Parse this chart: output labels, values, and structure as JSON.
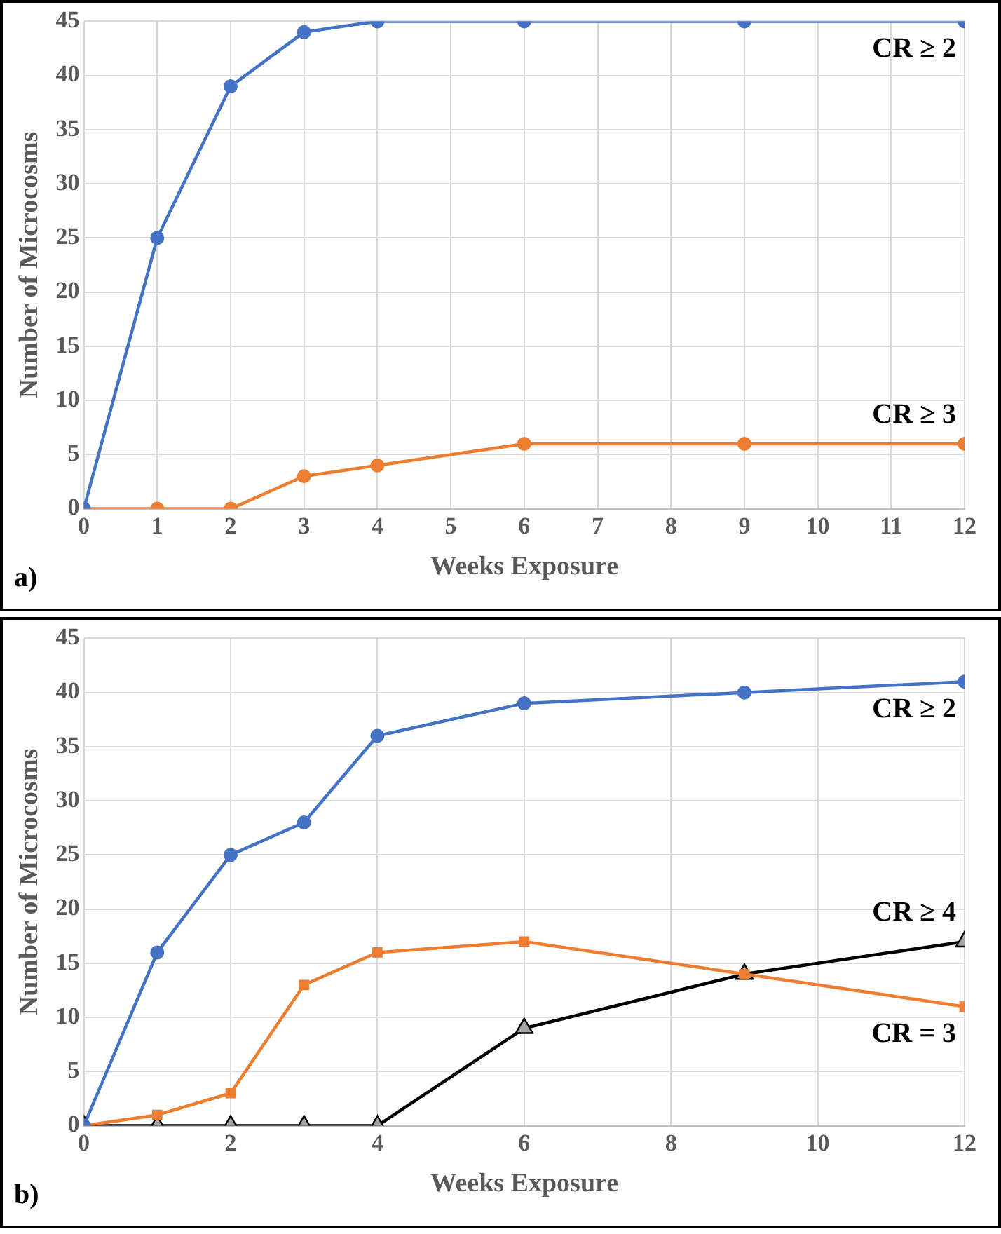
{
  "chart_data": [
    {
      "type": "line",
      "xlabel": "Weeks Exposure",
      "ylabel": "Number of Microcosms",
      "marker": "circle",
      "grid": true,
      "legend": false,
      "x": [
        0,
        1,
        2,
        3,
        4,
        6,
        9,
        12
      ],
      "xlim": [
        0,
        12
      ],
      "xticks": [
        0,
        1,
        2,
        3,
        4,
        5,
        6,
        7,
        8,
        9,
        10,
        11,
        12
      ],
      "ylim": [
        0,
        45
      ],
      "yticks": [
        0,
        5,
        10,
        15,
        20,
        25,
        30,
        35,
        40,
        45
      ],
      "series": [
        {
          "name": "CR ≥ 2",
          "color": "#4472c4",
          "values": [
            0,
            25,
            39,
            44,
            45,
            45,
            45,
            45
          ]
        },
        {
          "name": "CR ≥ 3",
          "color": "#ed7d31",
          "values": [
            0,
            0,
            0,
            3,
            4,
            6,
            6,
            6
          ]
        }
      ],
      "annotations": [
        "a)"
      ]
    },
    {
      "type": "line",
      "xlabel": "Weeks Exposure",
      "ylabel": "Number of Microcosms",
      "grid": true,
      "legend": false,
      "x": [
        0,
        1,
        2,
        3,
        4,
        6,
        9,
        12
      ],
      "xlim": [
        0,
        12
      ],
      "xticks": [
        0,
        2,
        4,
        6,
        8,
        10,
        12
      ],
      "ylim": [
        0,
        45
      ],
      "yticks": [
        0,
        5,
        10,
        15,
        20,
        25,
        30,
        35,
        40,
        45
      ],
      "series": [
        {
          "name": "CR ≥ 2",
          "color": "#4472c4",
          "marker": "circle",
          "values": [
            0,
            16,
            25,
            28,
            36,
            39,
            40,
            41
          ]
        },
        {
          "name": "CR = 3",
          "color": "#ed7d31",
          "marker": "square",
          "values": [
            0,
            1,
            3,
            13,
            16,
            17,
            14,
            11
          ]
        },
        {
          "name": "CR ≥ 4",
          "color": "#000000",
          "marker": "triangle",
          "values": [
            0,
            0,
            0,
            0,
            0,
            9,
            14,
            17
          ]
        }
      ],
      "annotations": [
        "b)"
      ]
    }
  ]
}
